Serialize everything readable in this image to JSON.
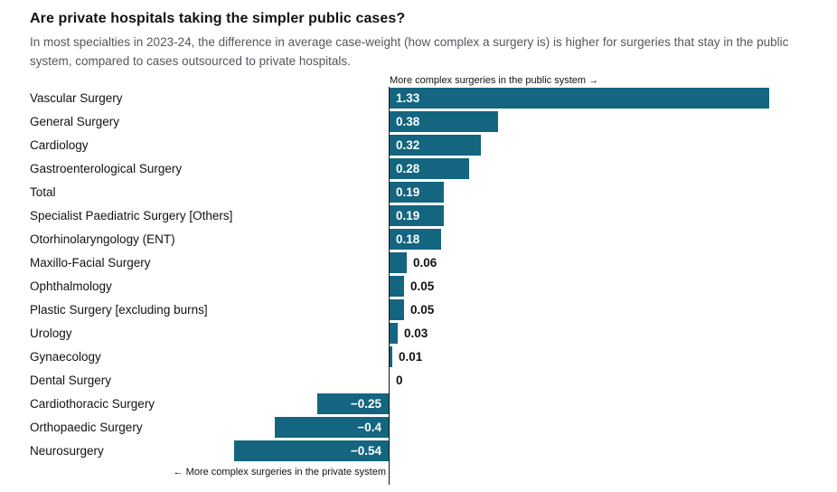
{
  "header": {
    "title": "Are private hospitals taking the simpler public cases?",
    "subtitle": "In most specialties in 2023-24, the difference in average case-weight (how complex a surgery is) is higher for surgeries that stay in the public system, compared to cases outsourced to private hospitals."
  },
  "annotations": {
    "positive": "More complex surgeries in the public system →",
    "negative": "← More complex surgeries in the private system"
  },
  "colors": {
    "bar": "#146580",
    "axis": "#121212",
    "value_inside": "#ffffff",
    "value_outside": "#121212",
    "subtitle": "#54575d"
  },
  "chart_data": {
    "type": "bar",
    "orientation": "horizontal",
    "title": "Are private hospitals taking the simpler public cases?",
    "categories": [
      "Vascular Surgery",
      "General Surgery",
      "Cardiology",
      "Gastroenterological Surgery",
      "Total",
      "Specialist Paediatric Surgery [Others]",
      "Otorhinolaryngology (ENT)",
      "Maxillo-Facial Surgery",
      "Ophthalmology",
      "Plastic Surgery [excluding burns]",
      "Urology",
      "Gynaecology",
      "Dental Surgery",
      "Cardiothoracic Surgery",
      "Orthopaedic Surgery",
      "Neurosurgery"
    ],
    "values": [
      1.33,
      0.38,
      0.32,
      0.28,
      0.19,
      0.19,
      0.18,
      0.06,
      0.05,
      0.05,
      0.03,
      0.01,
      0,
      -0.25,
      -0.4,
      -0.54
    ],
    "value_labels": [
      "1.33",
      "0.38",
      "0.32",
      "0.28",
      "0.19",
      "0.19",
      "0.18",
      "0.06",
      "0.05",
      "0.05",
      "0.03",
      "0.01",
      "0",
      "−0.25",
      "−0.4",
      "−0.54"
    ],
    "xlim": [
      -0.6,
      1.45
    ],
    "grid": false,
    "legend": false,
    "annotation_positive_direction": "More complex surgeries in the public system →",
    "annotation_negative_direction": "← More complex surgeries in the private system"
  }
}
